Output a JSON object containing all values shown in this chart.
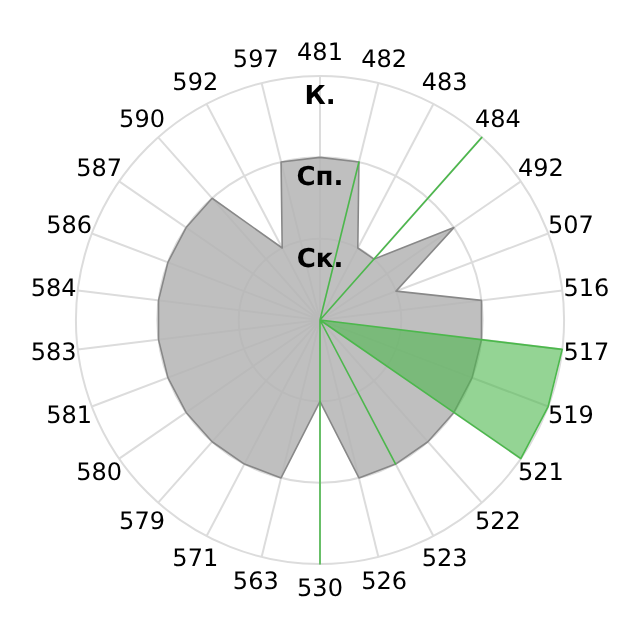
{
  "chart_data": {
    "type": "radar",
    "categories": [
      "481",
      "482",
      "483",
      "484",
      "492",
      "507",
      "516",
      "517",
      "519",
      "521",
      "522",
      "523",
      "526",
      "530",
      "563",
      "571",
      "579",
      "580",
      "581",
      "583",
      "584",
      "586",
      "587",
      "590",
      "592",
      "597"
    ],
    "series": [
      {
        "color": "#b4b4b4",
        "values": [
          2,
          2,
          1,
          1,
          2,
          1,
          2,
          2,
          2,
          2,
          2,
          2,
          2,
          1,
          2,
          2,
          2,
          2,
          2,
          2,
          2,
          2,
          2,
          2,
          1,
          2
        ]
      },
      {
        "color": "#4cb84c",
        "values": [
          0,
          2,
          0,
          3,
          0,
          0,
          0,
          3,
          3,
          3,
          0,
          2,
          0,
          3,
          0,
          0,
          0,
          0,
          0,
          0,
          0,
          0,
          0,
          0,
          0,
          0
        ]
      }
    ],
    "ylim": [
      0,
      3
    ],
    "yticks": [
      {
        "value": 1,
        "label": "Ск."
      },
      {
        "value": 2,
        "label": "Сп."
      },
      {
        "value": 3,
        "label": "К."
      }
    ],
    "grid": true
  }
}
